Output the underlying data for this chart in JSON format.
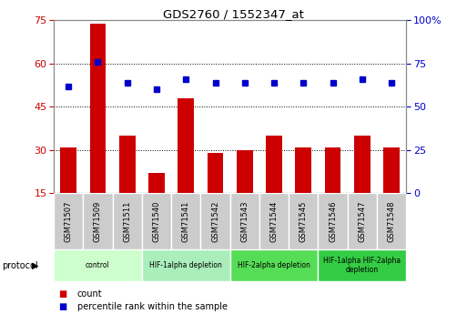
{
  "title": "GDS2760 / 1552347_at",
  "samples": [
    "GSM71507",
    "GSM71509",
    "GSM71511",
    "GSM71540",
    "GSM71541",
    "GSM71542",
    "GSM71543",
    "GSM71544",
    "GSM71545",
    "GSM71546",
    "GSM71547",
    "GSM71548"
  ],
  "counts": [
    31,
    74,
    35,
    22,
    48,
    29,
    30,
    35,
    31,
    31,
    35,
    31
  ],
  "percentile_ranks": [
    62,
    76,
    64,
    60,
    66,
    64,
    64,
    64,
    64,
    64,
    66,
    64
  ],
  "ylim_left": [
    15,
    75
  ],
  "ylim_right": [
    0,
    100
  ],
  "yticks_left": [
    15,
    30,
    45,
    60,
    75
  ],
  "yticks_right": [
    0,
    25,
    50,
    75,
    100
  ],
  "ytick_labels_right": [
    "0",
    "25",
    "50",
    "75",
    "100%"
  ],
  "bar_color": "#cc0000",
  "dot_color": "#0000cc",
  "protocol_groups": [
    {
      "label": "control",
      "start": 0,
      "end": 2,
      "color": "#ccffcc"
    },
    {
      "label": "HIF-1alpha depletion",
      "start": 3,
      "end": 5,
      "color": "#aaeebb"
    },
    {
      "label": "HIF-2alpha depletion",
      "start": 6,
      "end": 8,
      "color": "#55dd55"
    },
    {
      "label": "HIF-1alpha HIF-2alpha\ndepletion",
      "start": 9,
      "end": 11,
      "color": "#33cc44"
    }
  ],
  "legend_items": [
    {
      "color": "#cc0000",
      "label": "count"
    },
    {
      "color": "#0000cc",
      "label": "percentile rank within the sample"
    }
  ],
  "background_color": "#ffffff",
  "plot_bg_color": "#ffffff",
  "tick_label_color_left": "#cc0000",
  "tick_label_color_right": "#0000cc",
  "bar_width": 0.55,
  "label_bg_color": "#cccccc",
  "label_edge_color": "#ffffff"
}
